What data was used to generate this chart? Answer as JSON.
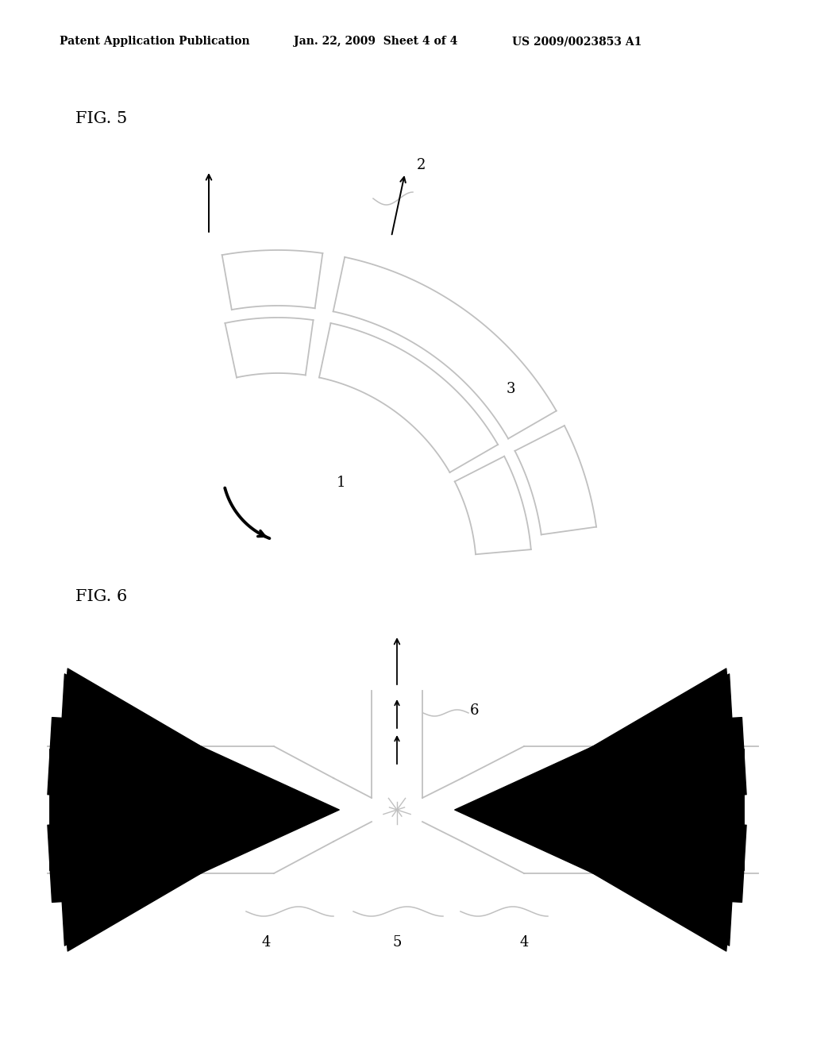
{
  "bg_color": "#ffffff",
  "header_left": "Patent Application Publication",
  "header_mid": "Jan. 22, 2009  Sheet 4 of 4",
  "header_right": "US 2009/0023853 A1",
  "fig5_label": "FIG. 5",
  "fig6_label": "FIG. 6",
  "lc": "#c0c0c0",
  "black": "#000000"
}
